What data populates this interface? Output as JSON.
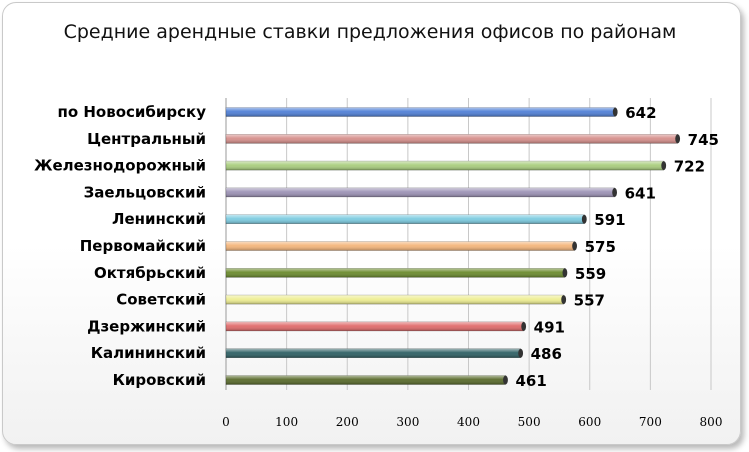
{
  "chart_data": {
    "type": "bar",
    "orientation": "horizontal",
    "title": "Средние арендные ставки предложения офисов по районам",
    "categories": [
      "по Новосибирску",
      "Центральный",
      "Железнодорожный",
      "Заельцовский",
      "Ленинский",
      "Первомайский",
      "Октябрьский",
      "Советский",
      "Дзержинский",
      "Калининский",
      "Кировский"
    ],
    "values": [
      642,
      745,
      722,
      641,
      591,
      575,
      559,
      557,
      491,
      486,
      461
    ],
    "colors": [
      "#4f7fd6",
      "#d68f8b",
      "#a9cd7d",
      "#9c92b5",
      "#7ccbe0",
      "#f4b57a",
      "#6a8a2c",
      "#eeee92",
      "#e06a6a",
      "#2d5f63",
      "#586a2a"
    ],
    "xlim": [
      0,
      800
    ],
    "xticks": [
      0,
      100,
      200,
      300,
      400,
      500,
      600,
      700,
      800
    ],
    "xlabel": "",
    "ylabel": "",
    "grid": "vertical",
    "legend": "none",
    "data_labels": true
  }
}
